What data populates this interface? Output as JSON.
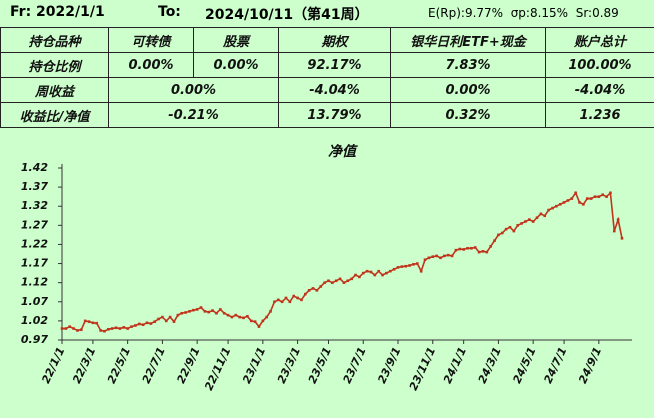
{
  "header": {
    "from": "Fr: 2022/1/1",
    "to_label": "To:",
    "to": "2024/10/11（第41周）",
    "stats": "E(Rp):9.77%  σp:8.15%  Sr:0.89"
  },
  "table": {
    "rows": [
      [
        "持仓品种",
        "可转债",
        "股票",
        "期权",
        "银华日利ETF+现金",
        "账户总计"
      ],
      [
        "持仓比例",
        "0.00%",
        "0.00%",
        "92.17%",
        "7.83%",
        "100.00%"
      ],
      [
        "周收益",
        "0.00%",
        "-4.04%",
        "0.00%",
        "-4.04%"
      ],
      [
        "收益比/净值",
        "-0.21%",
        "13.79%",
        "0.32%",
        "1.236"
      ]
    ]
  },
  "chart_data": {
    "type": "line",
    "title": "净值",
    "color": "#c0341c",
    "ylim": [
      0.97,
      1.42
    ],
    "yticks": [
      0.97,
      1.02,
      1.07,
      1.12,
      1.17,
      1.22,
      1.27,
      1.32,
      1.37,
      1.42
    ],
    "categories": [
      "22/1/1",
      null,
      null,
      null,
      null,
      null,
      null,
      null,
      "22/3/1",
      null,
      null,
      null,
      null,
      null,
      null,
      null,
      null,
      "22/5/1",
      null,
      null,
      null,
      null,
      null,
      null,
      null,
      null,
      "22/7/1",
      null,
      null,
      null,
      null,
      null,
      null,
      null,
      null,
      "22/9/1",
      null,
      null,
      null,
      null,
      null,
      null,
      null,
      "22/11/1",
      null,
      null,
      null,
      null,
      null,
      null,
      null,
      null,
      "23/1/1",
      null,
      null,
      null,
      null,
      null,
      null,
      null,
      null,
      "23/3/1",
      null,
      null,
      null,
      null,
      null,
      null,
      null,
      "23/5/1",
      null,
      null,
      null,
      null,
      null,
      null,
      null,
      null,
      "23/7/1",
      null,
      null,
      null,
      null,
      null,
      null,
      null,
      null,
      "23/9/1",
      null,
      null,
      null,
      null,
      null,
      null,
      null,
      null,
      "23/11/1",
      null,
      null,
      null,
      null,
      null,
      null,
      null,
      "24/1/1",
      null,
      null,
      null,
      null,
      null,
      null,
      null,
      null,
      "24/3/1",
      null,
      null,
      null,
      null,
      null,
      null,
      null,
      null,
      "24/5/1",
      null,
      null,
      null,
      null,
      null,
      null,
      null,
      "24/7/1",
      null,
      null,
      null,
      null,
      null,
      null,
      null,
      null,
      "24/9/1",
      null,
      null,
      null,
      null,
      null,
      null
    ],
    "values": [
      1.0,
      1.0,
      1.005,
      1.0,
      0.995,
      0.997,
      1.02,
      1.018,
      1.015,
      1.014,
      0.995,
      0.993,
      0.998,
      1.0,
      1.002,
      1.0,
      1.003,
      1.0,
      1.005,
      1.008,
      1.012,
      1.01,
      1.015,
      1.013,
      1.018,
      1.025,
      1.03,
      1.02,
      1.03,
      1.018,
      1.035,
      1.04,
      1.042,
      1.045,
      1.048,
      1.05,
      1.055,
      1.045,
      1.043,
      1.047,
      1.04,
      1.05,
      1.04,
      1.035,
      1.03,
      1.035,
      1.03,
      1.028,
      1.032,
      1.02,
      1.018,
      1.005,
      1.02,
      1.03,
      1.045,
      1.07,
      1.075,
      1.07,
      1.08,
      1.07,
      1.085,
      1.08,
      1.075,
      1.09,
      1.1,
      1.105,
      1.1,
      1.11,
      1.12,
      1.125,
      1.12,
      1.125,
      1.13,
      1.12,
      1.125,
      1.13,
      1.14,
      1.135,
      1.145,
      1.15,
      1.148,
      1.14,
      1.15,
      1.14,
      1.145,
      1.15,
      1.155,
      1.16,
      1.162,
      1.163,
      1.165,
      1.168,
      1.17,
      1.15,
      1.18,
      1.185,
      1.188,
      1.19,
      1.185,
      1.19,
      1.192,
      1.19,
      1.205,
      1.208,
      1.207,
      1.21,
      1.21,
      1.212,
      1.2,
      1.202,
      1.2,
      1.215,
      1.23,
      1.245,
      1.25,
      1.26,
      1.265,
      1.255,
      1.27,
      1.275,
      1.28,
      1.285,
      1.28,
      1.29,
      1.3,
      1.295,
      1.31,
      1.315,
      1.32,
      1.325,
      1.33,
      1.335,
      1.34,
      1.355,
      1.33,
      1.325,
      1.34,
      1.34,
      1.345,
      1.345,
      1.35,
      1.345,
      1.355,
      1.255,
      1.285,
      1.236
    ]
  }
}
